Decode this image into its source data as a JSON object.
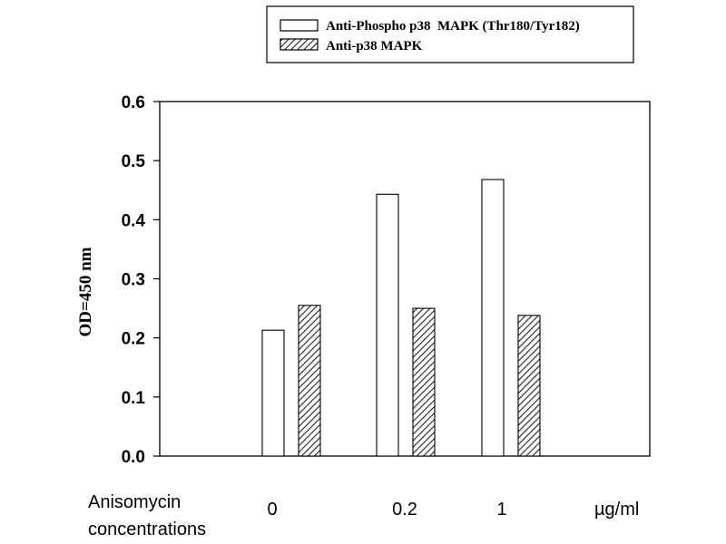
{
  "chart_data": {
    "type": "bar",
    "title": "",
    "xlabel": "Anisomycin concentrations",
    "xlabel_lines": [
      "Anisomycin",
      "concentrations"
    ],
    "x_unit": "µg/ml",
    "ylabel": "OD=450 nm",
    "ylim": [
      0,
      0.6
    ],
    "yticks": [
      "0.0",
      "0.1",
      "0.2",
      "0.3",
      "0.4",
      "0.5",
      "0.6"
    ],
    "categories": [
      "0",
      "0.2",
      "1"
    ],
    "series": [
      {
        "name": "Anti-Phospho p38  MAPK (Thr180/Tyr182)",
        "values": [
          0.213,
          0.443,
          0.468
        ],
        "fill": "#ffffff",
        "pattern": "none"
      },
      {
        "name": "Anti-p38 MAPK",
        "values": [
          0.255,
          0.25,
          0.238
        ],
        "fill": "#ffffff",
        "pattern": "diagonal-hatch"
      }
    ],
    "grid": false,
    "legend_position": "top-right"
  }
}
